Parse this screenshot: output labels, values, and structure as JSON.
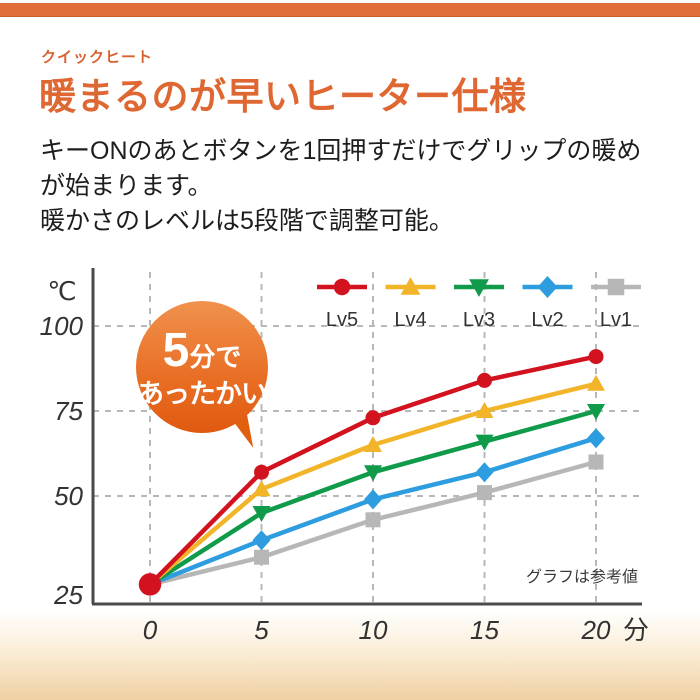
{
  "header": {
    "eyebrow": "クイックヒート",
    "title": "暖まるのが早いヒーター仕様"
  },
  "description": {
    "lines": [
      "キーONのあとボタンを1回押すだけでグリップの暖め",
      "が始まります。",
      "暖かさのレベルは5段階で調整可能。"
    ]
  },
  "badge": {
    "big": "5",
    "unit": "分で",
    "line2": "あったかい"
  },
  "colors": {
    "accent": "#e06e3a",
    "title": "#de6732",
    "badge_top": "#f0924e",
    "badge_bottom": "#e05a10"
  },
  "chart_data": {
    "type": "line",
    "x": [
      0,
      5,
      10,
      15,
      20
    ],
    "xticks": [
      0,
      5,
      10,
      15,
      20
    ],
    "x_unit": "分",
    "y_unit": "℃",
    "yticks": [
      25,
      50,
      75,
      100
    ],
    "ylim": [
      18,
      117
    ],
    "grid": "dashed",
    "legend_position": "top-right",
    "note": "グラフは参考値",
    "series": [
      {
        "name": "Lv5",
        "color": "#d2121e",
        "marker": "circle",
        "values": [
          24,
          57,
          73,
          84,
          91
        ]
      },
      {
        "name": "Lv4",
        "color": "#f2b428",
        "marker": "triangle-up",
        "values": [
          24,
          52,
          65,
          75,
          83
        ]
      },
      {
        "name": "Lv3",
        "color": "#0f9b4a",
        "marker": "triangle-down",
        "values": [
          24,
          45,
          57,
          66,
          75
        ]
      },
      {
        "name": "Lv2",
        "color": "#2d9de0",
        "marker": "diamond",
        "values": [
          24,
          37,
          49,
          57,
          67
        ]
      },
      {
        "name": "Lv1",
        "color": "#b7b7b7",
        "marker": "square",
        "values": [
          24,
          32,
          43,
          51,
          60
        ]
      }
    ]
  }
}
